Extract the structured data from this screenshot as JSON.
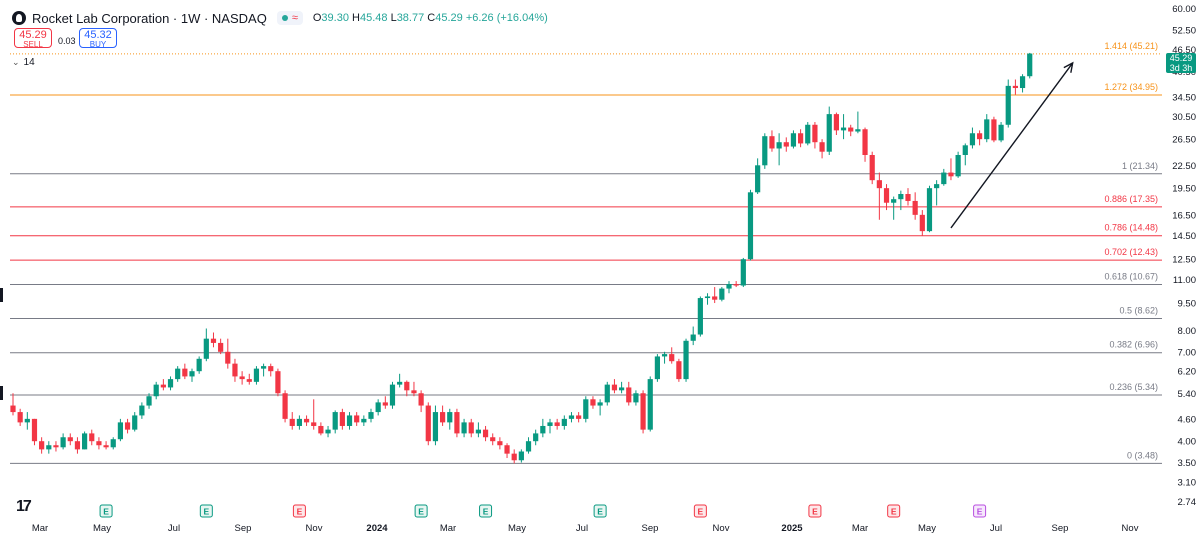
{
  "header": {
    "title": "Rocket Lab Corporation · 1W · NASDAQ",
    "wave": "≈",
    "open_label": "O",
    "open": "39.30",
    "high_label": "H",
    "high": "45.48",
    "low_label": "L",
    "low": "38.77",
    "close_label": "C",
    "close": "45.29",
    "change": "+6.26 (+16.04%)"
  },
  "trade": {
    "sell_price": "45.29",
    "sell_label": "SELL",
    "spread": "0.03",
    "buy_price": "45.32",
    "buy_label": "BUY"
  },
  "indicator": {
    "value": "14"
  },
  "price_tag": {
    "price": "45.29",
    "countdown": "3d 3h",
    "color": "#089981"
  },
  "colors": {
    "up": "#089981",
    "down": "#f23645",
    "orange": "#f7931a",
    "red": "#f23645",
    "gray": "#787b86"
  },
  "icons": [
    "rocket-lab-logo-icon",
    "tradingview-logo-icon",
    "earnings-badge-icon",
    "chevron-down-icon"
  ],
  "chart_data": {
    "type": "candlestick",
    "title": "Rocket Lab Corporation · 1W · NASDAQ",
    "scale": "log",
    "ylim": [
      2.6,
      61
    ],
    "y_ticks": [
      "60.00",
      "52.50",
      "46.50",
      "40.50",
      "34.50",
      "30.50",
      "26.50",
      "22.50",
      "19.50",
      "16.50",
      "14.50",
      "12.50",
      "11.00",
      "9.50",
      "8.00",
      "7.00",
      "6.20",
      "5.40",
      "4.60",
      "4.00",
      "3.50",
      "3.10",
      "2.74"
    ],
    "x_ticks": [
      "Mar",
      "May",
      "Jul",
      "Sep",
      "Nov",
      "2024",
      "Mar",
      "May",
      "Jul",
      "Sep",
      "Nov",
      "2025",
      "Mar",
      "May",
      "Jul",
      "Sep",
      "Nov"
    ],
    "fib_levels": [
      {
        "label": "1.414 (45.21)",
        "value": 45.21,
        "color": "#f7931a",
        "style": "dotted"
      },
      {
        "label": "1.272 (34.95)",
        "value": 34.95,
        "color": "#f7931a",
        "style": "solid"
      },
      {
        "label": "1 (21.34)",
        "value": 21.34,
        "color": "#787b86",
        "style": "solid"
      },
      {
        "label": "0.886 (17.35)",
        "value": 17.35,
        "color": "#f23645",
        "style": "solid"
      },
      {
        "label": "0.786 (14.48)",
        "value": 14.48,
        "color": "#f23645",
        "style": "solid"
      },
      {
        "label": "0.702 (12.43)",
        "value": 12.43,
        "color": "#f23645",
        "style": "solid"
      },
      {
        "label": "0.618 (10.67)",
        "value": 10.67,
        "color": "#787b86",
        "style": "solid"
      },
      {
        "label": "0.5 (8.62)",
        "value": 8.62,
        "color": "#787b86",
        "style": "solid"
      },
      {
        "label": "0.382 (6.96)",
        "value": 6.96,
        "color": "#787b86",
        "style": "solid"
      },
      {
        "label": "0.236 (5.34)",
        "value": 5.34,
        "color": "#787b86",
        "style": "solid"
      },
      {
        "label": "0 (3.48)",
        "value": 3.48,
        "color": "#787b86",
        "style": "solid"
      }
    ],
    "earnings_markers": [
      {
        "week": 13,
        "label": "E",
        "type": "beat"
      },
      {
        "week": 27,
        "label": "E",
        "type": "beat"
      },
      {
        "week": 40,
        "label": "E",
        "type": "miss"
      },
      {
        "week": 57,
        "label": "E",
        "type": "beat"
      },
      {
        "week": 66,
        "label": "E",
        "type": "beat"
      },
      {
        "week": 82,
        "label": "E",
        "type": "beat"
      },
      {
        "week": 96,
        "label": "E",
        "type": "miss"
      },
      {
        "week": 112,
        "label": "E",
        "type": "miss"
      },
      {
        "week": 123,
        "label": "E",
        "type": "miss"
      },
      {
        "week": 135,
        "label": "E",
        "type": "next"
      }
    ],
    "arrow": {
      "from": {
        "week": 131,
        "price": 15.2
      },
      "to": {
        "week": 148,
        "price": 42.7
      }
    },
    "candles": [
      {
        "o": 5.0,
        "h": 5.4,
        "l": 4.7,
        "c": 4.8
      },
      {
        "o": 4.8,
        "h": 4.9,
        "l": 4.4,
        "c": 4.5
      },
      {
        "o": 4.5,
        "h": 4.8,
        "l": 4.3,
        "c": 4.6
      },
      {
        "o": 4.6,
        "h": 4.6,
        "l": 3.9,
        "c": 4.0
      },
      {
        "o": 4.0,
        "h": 4.1,
        "l": 3.7,
        "c": 3.8
      },
      {
        "o": 3.8,
        "h": 4.0,
        "l": 3.7,
        "c": 3.9
      },
      {
        "o": 3.9,
        "h": 4.0,
        "l": 3.75,
        "c": 3.85
      },
      {
        "o": 3.85,
        "h": 4.2,
        "l": 3.8,
        "c": 4.1
      },
      {
        "o": 4.1,
        "h": 4.2,
        "l": 3.9,
        "c": 4.0
      },
      {
        "o": 4.0,
        "h": 4.1,
        "l": 3.7,
        "c": 3.8
      },
      {
        "o": 3.8,
        "h": 4.25,
        "l": 3.8,
        "c": 4.2
      },
      {
        "o": 4.2,
        "h": 4.3,
        "l": 3.9,
        "c": 4.0
      },
      {
        "o": 4.0,
        "h": 4.1,
        "l": 3.8,
        "c": 3.9
      },
      {
        "o": 3.9,
        "h": 4.0,
        "l": 3.8,
        "c": 3.85
      },
      {
        "o": 3.85,
        "h": 4.1,
        "l": 3.8,
        "c": 4.05
      },
      {
        "o": 4.05,
        "h": 4.6,
        "l": 4.0,
        "c": 4.5
      },
      {
        "o": 4.5,
        "h": 4.6,
        "l": 4.2,
        "c": 4.3
      },
      {
        "o": 4.3,
        "h": 4.8,
        "l": 4.25,
        "c": 4.7
      },
      {
        "o": 4.7,
        "h": 5.1,
        "l": 4.6,
        "c": 5.0
      },
      {
        "o": 5.0,
        "h": 5.4,
        "l": 4.9,
        "c": 5.3
      },
      {
        "o": 5.3,
        "h": 5.8,
        "l": 5.2,
        "c": 5.7
      },
      {
        "o": 5.7,
        "h": 5.9,
        "l": 5.5,
        "c": 5.6
      },
      {
        "o": 5.6,
        "h": 6.0,
        "l": 5.5,
        "c": 5.9
      },
      {
        "o": 5.9,
        "h": 6.4,
        "l": 5.8,
        "c": 6.3
      },
      {
        "o": 6.3,
        "h": 6.5,
        "l": 5.9,
        "c": 6.0
      },
      {
        "o": 6.0,
        "h": 6.3,
        "l": 5.8,
        "c": 6.2
      },
      {
        "o": 6.2,
        "h": 6.8,
        "l": 6.1,
        "c": 6.7
      },
      {
        "o": 6.7,
        "h": 8.1,
        "l": 6.6,
        "c": 7.6
      },
      {
        "o": 7.6,
        "h": 7.9,
        "l": 7.2,
        "c": 7.4
      },
      {
        "o": 7.4,
        "h": 7.6,
        "l": 6.9,
        "c": 7.0
      },
      {
        "o": 7.0,
        "h": 7.6,
        "l": 6.3,
        "c": 6.5
      },
      {
        "o": 6.5,
        "h": 6.7,
        "l": 5.8,
        "c": 6.0
      },
      {
        "o": 6.0,
        "h": 6.2,
        "l": 5.7,
        "c": 5.9
      },
      {
        "o": 5.9,
        "h": 6.1,
        "l": 5.7,
        "c": 5.8
      },
      {
        "o": 5.8,
        "h": 6.4,
        "l": 5.7,
        "c": 6.3
      },
      {
        "o": 6.3,
        "h": 6.5,
        "l": 6.0,
        "c": 6.4
      },
      {
        "o": 6.4,
        "h": 6.5,
        "l": 6.0,
        "c": 6.2
      },
      {
        "o": 6.2,
        "h": 6.3,
        "l": 5.3,
        "c": 5.4
      },
      {
        "o": 5.4,
        "h": 5.5,
        "l": 4.5,
        "c": 4.6
      },
      {
        "o": 4.6,
        "h": 4.8,
        "l": 4.3,
        "c": 4.4
      },
      {
        "o": 4.4,
        "h": 4.7,
        "l": 4.3,
        "c": 4.6
      },
      {
        "o": 4.6,
        "h": 4.7,
        "l": 4.4,
        "c": 4.5
      },
      {
        "o": 4.5,
        "h": 5.2,
        "l": 4.3,
        "c": 4.4
      },
      {
        "o": 4.4,
        "h": 4.5,
        "l": 4.15,
        "c": 4.2
      },
      {
        "o": 4.2,
        "h": 4.4,
        "l": 4.1,
        "c": 4.3
      },
      {
        "o": 4.3,
        "h": 4.85,
        "l": 4.2,
        "c": 4.8
      },
      {
        "o": 4.8,
        "h": 4.9,
        "l": 4.3,
        "c": 4.4
      },
      {
        "o": 4.4,
        "h": 4.8,
        "l": 4.3,
        "c": 4.7
      },
      {
        "o": 4.7,
        "h": 4.8,
        "l": 4.4,
        "c": 4.5
      },
      {
        "o": 4.5,
        "h": 4.7,
        "l": 4.4,
        "c": 4.6
      },
      {
        "o": 4.6,
        "h": 4.9,
        "l": 4.5,
        "c": 4.8
      },
      {
        "o": 4.8,
        "h": 5.2,
        "l": 4.7,
        "c": 5.1
      },
      {
        "o": 5.1,
        "h": 5.3,
        "l": 4.9,
        "c": 5.0
      },
      {
        "o": 5.0,
        "h": 5.8,
        "l": 4.9,
        "c": 5.7
      },
      {
        "o": 5.7,
        "h": 6.1,
        "l": 5.6,
        "c": 5.8
      },
      {
        "o": 5.8,
        "h": 5.85,
        "l": 5.3,
        "c": 5.5
      },
      {
        "o": 5.5,
        "h": 5.8,
        "l": 5.3,
        "c": 5.4
      },
      {
        "o": 5.4,
        "h": 5.5,
        "l": 4.8,
        "c": 5.0
      },
      {
        "o": 5.0,
        "h": 5.1,
        "l": 3.9,
        "c": 4.0
      },
      {
        "o": 4.0,
        "h": 5.0,
        "l": 3.9,
        "c": 4.8
      },
      {
        "o": 4.8,
        "h": 5.0,
        "l": 4.4,
        "c": 4.5
      },
      {
        "o": 4.5,
        "h": 4.9,
        "l": 4.3,
        "c": 4.8
      },
      {
        "o": 4.8,
        "h": 4.9,
        "l": 4.1,
        "c": 4.2
      },
      {
        "o": 4.2,
        "h": 4.6,
        "l": 4.1,
        "c": 4.5
      },
      {
        "o": 4.5,
        "h": 4.6,
        "l": 4.1,
        "c": 4.2
      },
      {
        "o": 4.2,
        "h": 4.5,
        "l": 4.1,
        "c": 4.3
      },
      {
        "o": 4.3,
        "h": 4.4,
        "l": 4.0,
        "c": 4.1
      },
      {
        "o": 4.1,
        "h": 4.2,
        "l": 3.9,
        "c": 4.0
      },
      {
        "o": 4.0,
        "h": 4.1,
        "l": 3.8,
        "c": 3.9
      },
      {
        "o": 3.9,
        "h": 3.95,
        "l": 3.6,
        "c": 3.7
      },
      {
        "o": 3.7,
        "h": 3.8,
        "l": 3.48,
        "c": 3.55
      },
      {
        "o": 3.55,
        "h": 3.8,
        "l": 3.5,
        "c": 3.75
      },
      {
        "o": 3.75,
        "h": 4.1,
        "l": 3.7,
        "c": 4.0
      },
      {
        "o": 4.0,
        "h": 4.3,
        "l": 3.9,
        "c": 4.2
      },
      {
        "o": 4.2,
        "h": 4.6,
        "l": 4.1,
        "c": 4.4
      },
      {
        "o": 4.4,
        "h": 4.6,
        "l": 4.2,
        "c": 4.5
      },
      {
        "o": 4.5,
        "h": 4.6,
        "l": 4.3,
        "c": 4.4
      },
      {
        "o": 4.4,
        "h": 4.7,
        "l": 4.3,
        "c": 4.6
      },
      {
        "o": 4.6,
        "h": 4.8,
        "l": 4.5,
        "c": 4.7
      },
      {
        "o": 4.7,
        "h": 4.8,
        "l": 4.5,
        "c": 4.6
      },
      {
        "o": 4.6,
        "h": 5.3,
        "l": 4.5,
        "c": 5.2
      },
      {
        "o": 5.2,
        "h": 5.3,
        "l": 4.9,
        "c": 5.0
      },
      {
        "o": 5.0,
        "h": 5.2,
        "l": 4.7,
        "c": 5.1
      },
      {
        "o": 5.1,
        "h": 5.8,
        "l": 5.0,
        "c": 5.7
      },
      {
        "o": 5.7,
        "h": 5.9,
        "l": 5.4,
        "c": 5.5
      },
      {
        "o": 5.5,
        "h": 5.8,
        "l": 5.4,
        "c": 5.6
      },
      {
        "o": 5.6,
        "h": 5.8,
        "l": 5.0,
        "c": 5.1
      },
      {
        "o": 5.1,
        "h": 5.5,
        "l": 5.0,
        "c": 5.4
      },
      {
        "o": 5.4,
        "h": 5.5,
        "l": 4.2,
        "c": 4.3
      },
      {
        "o": 4.3,
        "h": 6.0,
        "l": 4.25,
        "c": 5.9
      },
      {
        "o": 5.9,
        "h": 6.9,
        "l": 5.8,
        "c": 6.8
      },
      {
        "o": 6.8,
        "h": 7.0,
        "l": 6.5,
        "c": 6.9
      },
      {
        "o": 6.9,
        "h": 7.2,
        "l": 6.5,
        "c": 6.6
      },
      {
        "o": 6.6,
        "h": 6.7,
        "l": 5.8,
        "c": 5.9
      },
      {
        "o": 5.9,
        "h": 7.6,
        "l": 5.8,
        "c": 7.5
      },
      {
        "o": 7.5,
        "h": 8.2,
        "l": 7.3,
        "c": 7.8
      },
      {
        "o": 7.8,
        "h": 9.9,
        "l": 7.7,
        "c": 9.8
      },
      {
        "o": 9.8,
        "h": 10.1,
        "l": 9.4,
        "c": 9.9
      },
      {
        "o": 9.9,
        "h": 10.5,
        "l": 9.5,
        "c": 9.7
      },
      {
        "o": 9.7,
        "h": 10.5,
        "l": 9.6,
        "c": 10.4
      },
      {
        "o": 10.4,
        "h": 10.9,
        "l": 10.1,
        "c": 10.7
      },
      {
        "o": 10.7,
        "h": 10.9,
        "l": 10.5,
        "c": 10.6
      },
      {
        "o": 10.6,
        "h": 12.6,
        "l": 10.5,
        "c": 12.5
      },
      {
        "o": 12.5,
        "h": 19.3,
        "l": 12.4,
        "c": 19.0
      },
      {
        "o": 19.0,
        "h": 23.5,
        "l": 18.8,
        "c": 22.5
      },
      {
        "o": 22.5,
        "h": 27.5,
        "l": 22.0,
        "c": 27.0
      },
      {
        "o": 27.0,
        "h": 28.0,
        "l": 24.5,
        "c": 25.0
      },
      {
        "o": 25.0,
        "h": 27.5,
        "l": 22.5,
        "c": 26.0
      },
      {
        "o": 26.0,
        "h": 26.8,
        "l": 24.5,
        "c": 25.3
      },
      {
        "o": 25.3,
        "h": 28.0,
        "l": 25.0,
        "c": 27.5
      },
      {
        "o": 27.5,
        "h": 28.2,
        "l": 25.2,
        "c": 25.8
      },
      {
        "o": 25.8,
        "h": 29.5,
        "l": 25.5,
        "c": 29.0
      },
      {
        "o": 29.0,
        "h": 29.5,
        "l": 25.0,
        "c": 26.0
      },
      {
        "o": 26.0,
        "h": 26.5,
        "l": 23.5,
        "c": 24.5
      },
      {
        "o": 24.5,
        "h": 32.5,
        "l": 24.0,
        "c": 31.0
      },
      {
        "o": 31.0,
        "h": 31.3,
        "l": 27.2,
        "c": 28.0
      },
      {
        "o": 28.0,
        "h": 31.0,
        "l": 26.5,
        "c": 28.5
      },
      {
        "o": 28.5,
        "h": 29.0,
        "l": 27.0,
        "c": 27.8
      },
      {
        "o": 27.8,
        "h": 31.5,
        "l": 27.5,
        "c": 28.2
      },
      {
        "o": 28.2,
        "h": 28.5,
        "l": 23.0,
        "c": 24.0
      },
      {
        "o": 24.0,
        "h": 24.5,
        "l": 20.0,
        "c": 20.5
      },
      {
        "o": 20.5,
        "h": 21.5,
        "l": 16.0,
        "c": 19.5
      },
      {
        "o": 19.5,
        "h": 20.0,
        "l": 17.0,
        "c": 17.8
      },
      {
        "o": 17.8,
        "h": 18.5,
        "l": 16.0,
        "c": 18.2
      },
      {
        "o": 18.2,
        "h": 19.2,
        "l": 17.0,
        "c": 18.8
      },
      {
        "o": 18.8,
        "h": 19.5,
        "l": 17.5,
        "c": 18.0
      },
      {
        "o": 18.0,
        "h": 19.0,
        "l": 16.0,
        "c": 16.5
      },
      {
        "o": 16.5,
        "h": 17.0,
        "l": 14.5,
        "c": 14.9
      },
      {
        "o": 14.9,
        "h": 19.8,
        "l": 14.8,
        "c": 19.5
      },
      {
        "o": 19.5,
        "h": 20.5,
        "l": 17.5,
        "c": 20.0
      },
      {
        "o": 20.0,
        "h": 22.0,
        "l": 19.8,
        "c": 21.5
      },
      {
        "o": 21.5,
        "h": 23.5,
        "l": 20.5,
        "c": 21.0
      },
      {
        "o": 21.0,
        "h": 24.5,
        "l": 20.8,
        "c": 24.0
      },
      {
        "o": 24.0,
        "h": 25.8,
        "l": 22.5,
        "c": 25.5
      },
      {
        "o": 25.5,
        "h": 28.5,
        "l": 25.0,
        "c": 27.5
      },
      {
        "o": 27.5,
        "h": 28.0,
        "l": 25.5,
        "c": 26.5
      },
      {
        "o": 26.5,
        "h": 31.0,
        "l": 26.0,
        "c": 30.0
      },
      {
        "o": 30.0,
        "h": 30.5,
        "l": 26.0,
        "c": 26.3
      },
      {
        "o": 26.3,
        "h": 29.5,
        "l": 26.0,
        "c": 29.0
      },
      {
        "o": 29.0,
        "h": 38.5,
        "l": 28.5,
        "c": 37.0
      },
      {
        "o": 37.0,
        "h": 38.5,
        "l": 35.0,
        "c": 36.5
      },
      {
        "o": 36.5,
        "h": 39.8,
        "l": 35.5,
        "c": 39.3
      },
      {
        "o": 39.3,
        "h": 45.48,
        "l": 38.77,
        "c": 45.29
      }
    ]
  }
}
